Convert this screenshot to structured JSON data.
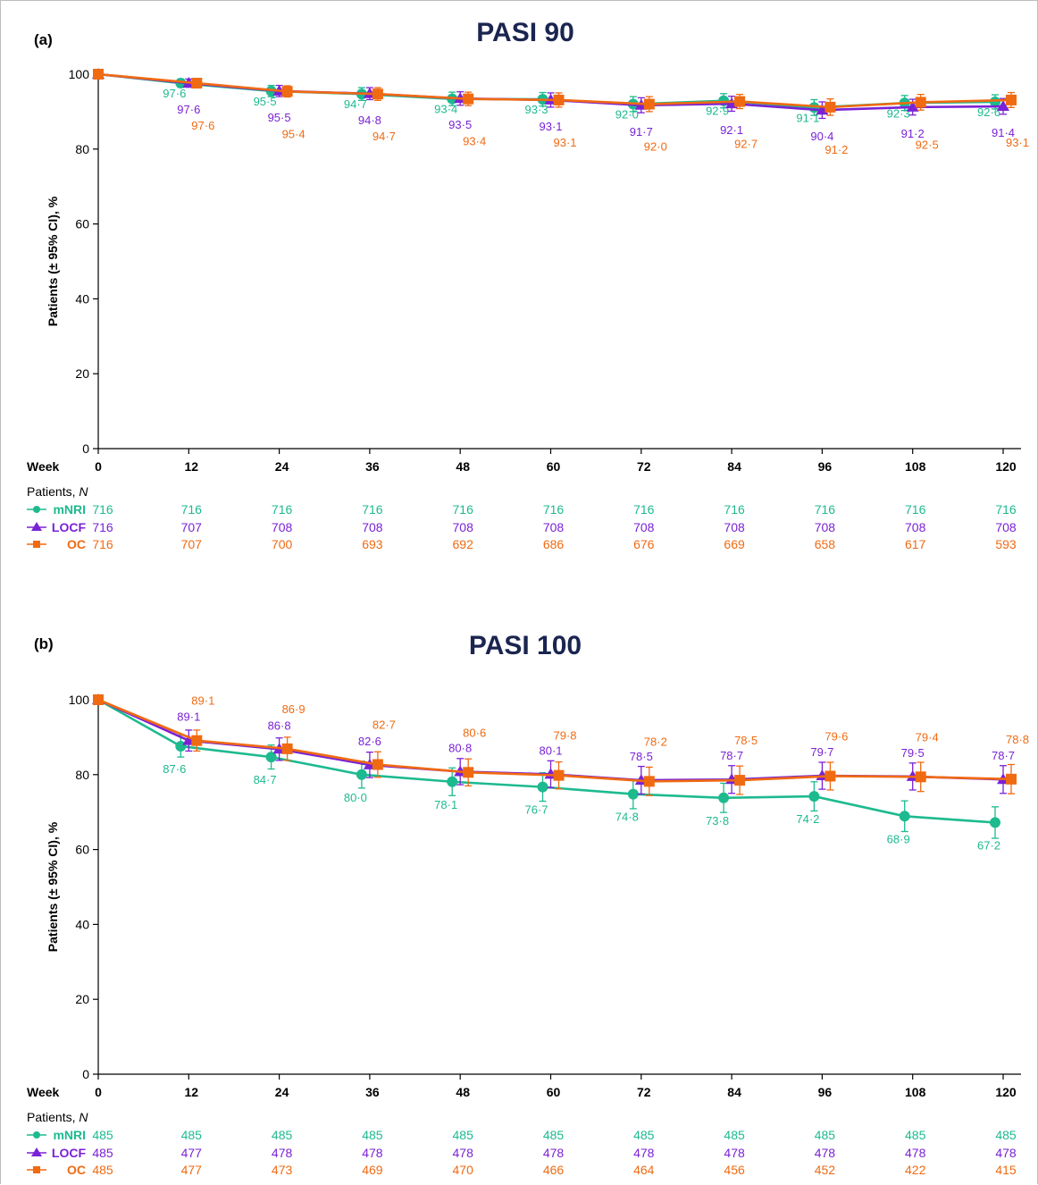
{
  "colors": {
    "mNRI": "#1dba8f",
    "LOCF": "#7a22d6",
    "OC": "#f06a12",
    "title": "#1a2550",
    "axis": "#000000"
  },
  "chart_data": [
    {
      "type": "line",
      "panel_label": "(a)",
      "title": "PASI 90",
      "ylabel": "Patients (± 95% CI), %",
      "xlabel": "Week",
      "ylim": [
        0,
        100
      ],
      "yticks": [
        0,
        20,
        40,
        60,
        80,
        100
      ],
      "x": [
        0,
        12,
        24,
        36,
        48,
        60,
        72,
        84,
        96,
        108,
        120
      ],
      "series": [
        {
          "name": "mNRI",
          "marker": "circle",
          "values": [
            100,
            97.6,
            95.5,
            94.7,
            93.4,
            93.3,
            92.0,
            92.9,
            91.1,
            92.3,
            92.6
          ],
          "labels": [
            "",
            "97·6",
            "95·5",
            "94·7",
            "93·4",
            "93·3",
            "92·0",
            "92·9",
            "91·1",
            "92·3",
            "92·6"
          ],
          "ci_half": [
            0,
            1.1,
            1.5,
            1.7,
            1.8,
            1.8,
            2.0,
            1.9,
            2.1,
            2.0,
            1.9
          ]
        },
        {
          "name": "LOCF",
          "marker": "triangle",
          "values": [
            100,
            97.6,
            95.5,
            94.8,
            93.5,
            93.1,
            91.7,
            92.1,
            90.4,
            91.2,
            91.4
          ],
          "labels": [
            "",
            "97·6",
            "95·5",
            "94·8",
            "93·5",
            "93·1",
            "91·7",
            "92·1",
            "90·4",
            "91·2",
            "91·4"
          ],
          "ci_half": [
            0,
            1.1,
            1.5,
            1.6,
            1.8,
            1.9,
            2.0,
            2.0,
            2.2,
            2.1,
            2.1
          ]
        },
        {
          "name": "OC",
          "marker": "square",
          "values": [
            100,
            97.6,
            95.4,
            94.7,
            93.4,
            93.1,
            92.0,
            92.7,
            91.2,
            92.5,
            93.1
          ],
          "labels": [
            "",
            "97·6",
            "95·4",
            "94·7",
            "93·4",
            "93·1",
            "92·0",
            "92·7",
            "91·2",
            "92·5",
            "93·1"
          ],
          "ci_half": [
            0,
            1.1,
            1.5,
            1.7,
            1.8,
            1.9,
            2.0,
            1.9,
            2.2,
            2.1,
            2.0
          ]
        }
      ],
      "patients_header": "Patients, ",
      "patients_header_n": "N",
      "patients": [
        {
          "name": "mNRI",
          "counts": [
            716,
            716,
            716,
            716,
            716,
            716,
            716,
            716,
            716,
            716,
            716
          ]
        },
        {
          "name": "LOCF",
          "counts": [
            716,
            707,
            708,
            708,
            708,
            708,
            708,
            708,
            708,
            708,
            708
          ]
        },
        {
          "name": "OC",
          "counts": [
            716,
            707,
            700,
            693,
            692,
            686,
            676,
            669,
            658,
            617,
            593
          ]
        }
      ]
    },
    {
      "type": "line",
      "panel_label": "(b)",
      "title": "PASI 100",
      "ylabel": "Patients (± 95% CI), %",
      "xlabel": "Week",
      "ylim": [
        0,
        100
      ],
      "yticks": [
        0,
        20,
        40,
        60,
        80,
        100
      ],
      "x": [
        0,
        12,
        24,
        36,
        48,
        60,
        72,
        84,
        96,
        108,
        120
      ],
      "series": [
        {
          "name": "mNRI",
          "marker": "circle",
          "values": [
            100,
            87.6,
            84.7,
            80.0,
            78.1,
            76.7,
            74.8,
            73.8,
            74.2,
            68.9,
            67.2
          ],
          "labels": [
            "",
            "87·6",
            "84·7",
            "80·0",
            "78·1",
            "76·7",
            "74·8",
            "73·8",
            "74·2",
            "68·9",
            "67·2"
          ],
          "ci_half": [
            0,
            2.9,
            3.2,
            3.6,
            3.7,
            3.8,
            3.9,
            3.9,
            3.9,
            4.1,
            4.2
          ]
        },
        {
          "name": "LOCF",
          "marker": "triangle",
          "values": [
            100,
            89.1,
            86.8,
            82.6,
            80.8,
            80.1,
            78.5,
            78.7,
            79.7,
            79.5,
            78.7
          ],
          "labels": [
            "",
            "89·1",
            "86·8",
            "82·6",
            "80·8",
            "80·1",
            "78·5",
            "78·7",
            "79·7",
            "79·5",
            "78·7"
          ],
          "ci_half": [
            0,
            2.8,
            3.0,
            3.4,
            3.5,
            3.6,
            3.7,
            3.7,
            3.6,
            3.6,
            3.7
          ]
        },
        {
          "name": "OC",
          "marker": "square",
          "values": [
            100,
            89.1,
            86.9,
            82.7,
            80.6,
            79.8,
            78.2,
            78.5,
            79.6,
            79.4,
            78.8
          ],
          "labels": [
            "",
            "89·1",
            "86·9",
            "82·7",
            "80·6",
            "79·8",
            "78·2",
            "78·5",
            "79·6",
            "79·4",
            "78·8"
          ],
          "ci_half": [
            0,
            2.8,
            3.1,
            3.4,
            3.6,
            3.6,
            3.8,
            3.8,
            3.7,
            3.9,
            3.9
          ]
        }
      ],
      "patients_header": "Patients, ",
      "patients_header_n": "N",
      "patients": [
        {
          "name": "mNRI",
          "counts": [
            485,
            485,
            485,
            485,
            485,
            485,
            485,
            485,
            485,
            485,
            485
          ]
        },
        {
          "name": "LOCF",
          "counts": [
            485,
            477,
            478,
            478,
            478,
            478,
            478,
            478,
            478,
            478,
            478
          ]
        },
        {
          "name": "OC",
          "counts": [
            485,
            477,
            473,
            469,
            470,
            466,
            464,
            456,
            452,
            422,
            415
          ]
        }
      ]
    }
  ]
}
